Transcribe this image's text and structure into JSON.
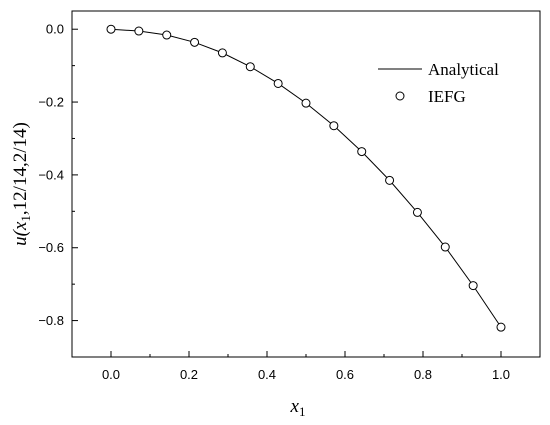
{
  "chart_data": {
    "type": "line",
    "xlabel": {
      "main": "x",
      "sub": "1"
    },
    "ylabel": {
      "prefix": "u(x",
      "sub": "1",
      "suffix": ",12/14,2/14)"
    },
    "xlim": [
      -0.1,
      1.1
    ],
    "ylim": [
      -0.9,
      0.05
    ],
    "xticks": [
      0.0,
      0.2,
      0.4,
      0.6,
      0.8,
      1.0
    ],
    "xtick_labels": [
      "0.0",
      "0.2",
      "0.4",
      "0.6",
      "0.8",
      "1.0"
    ],
    "yticks": [
      0.0,
      -0.2,
      -0.4,
      -0.6,
      -0.8
    ],
    "ytick_labels": [
      "0.0",
      "−0.2",
      "−0.4",
      "−0.6",
      "−0.8"
    ],
    "legend_position": "top-right",
    "grid": false,
    "series": [
      {
        "name": "Analytical",
        "style": "line",
        "color": "#000000",
        "x": [
          0.0,
          0.0714,
          0.1429,
          0.2143,
          0.2857,
          0.3571,
          0.4286,
          0.5,
          0.5714,
          0.6429,
          0.7143,
          0.7857,
          0.8571,
          0.9286,
          1.0
        ],
        "y": [
          0.0,
          -0.005,
          -0.016,
          -0.036,
          -0.065,
          -0.103,
          -0.149,
          -0.203,
          -0.265,
          -0.336,
          -0.415,
          -0.503,
          -0.598,
          -0.704,
          -0.818
        ]
      },
      {
        "name": "IEFG",
        "style": "open-circle",
        "color": "#000000",
        "x": [
          0.0,
          0.0714,
          0.1429,
          0.2143,
          0.2857,
          0.3571,
          0.4286,
          0.5,
          0.5714,
          0.6429,
          0.7143,
          0.7857,
          0.8571,
          0.9286,
          1.0
        ],
        "y": [
          0.0,
          -0.005,
          -0.016,
          -0.036,
          -0.065,
          -0.103,
          -0.149,
          -0.203,
          -0.265,
          -0.336,
          -0.415,
          -0.503,
          -0.598,
          -0.704,
          -0.818
        ]
      }
    ]
  }
}
